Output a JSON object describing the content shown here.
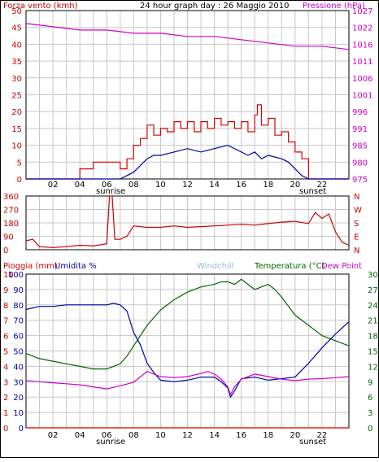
{
  "colors": {
    "wind": "#cc0000",
    "gust": "#dd0000",
    "wind_avg": "#0000aa",
    "pressure": "#cc00cc",
    "direction": "#cc0000",
    "temperature": "#006600",
    "humidity": "#0000aa",
    "dew_point": "#cc00cc",
    "windchill": "#99bbdd",
    "rain": "#cc0000",
    "grid": "#c8c8c8",
    "frame": "#000000"
  },
  "chart_data": [
    {
      "type": "line",
      "title": "24 hour graph day : 26 Maggio 2010",
      "ylabel_left": "Forza vento (kmh)",
      "ylabel_right": "Pressione (hPa)",
      "x_ticks": [
        "02",
        "04",
        "06",
        "08",
        "10",
        "12",
        "14",
        "16",
        "18",
        "20",
        "22"
      ],
      "x_markers": {
        "sunrise": "sunrise",
        "sunset": "sunset"
      },
      "ylim_left": [
        0,
        50
      ],
      "yticks_left": [
        "0",
        "5",
        "10",
        "15",
        "20",
        "25",
        "30",
        "35",
        "40",
        "45",
        "50"
      ],
      "ylim_right": [
        975,
        1027
      ],
      "yticks_right": [
        "975",
        "980",
        "985",
        "991",
        "996",
        "1001",
        "1006",
        "1011",
        "1016",
        "1022",
        "1027"
      ],
      "series": [
        {
          "key": "gust",
          "x": [
            0,
            2,
            4,
            5,
            6,
            7,
            7.5,
            8,
            8.5,
            9,
            9.5,
            10,
            10.5,
            11,
            11.5,
            12,
            12.5,
            13,
            13.5,
            14,
            14.5,
            15,
            15.5,
            16,
            16.5,
            17,
            17.2,
            17.5,
            18,
            18.5,
            19,
            19.5,
            20,
            20.5,
            21,
            22,
            24
          ],
          "y": [
            0,
            0,
            3,
            5,
            5,
            3,
            6,
            10,
            12,
            16,
            13,
            15,
            14,
            17,
            15,
            17,
            14,
            17,
            15,
            18,
            16,
            17,
            15,
            17,
            14,
            19,
            22,
            16,
            18,
            13,
            14,
            11,
            8,
            6,
            0,
            0,
            0
          ]
        },
        {
          "key": "wind_avg",
          "x": [
            0,
            6,
            7,
            8,
            8.5,
            9,
            9.5,
            10,
            11,
            12,
            13,
            14,
            15,
            16,
            16.5,
            17,
            17.5,
            18,
            19,
            19.5,
            20,
            20.5,
            21,
            24
          ],
          "y": [
            0,
            0,
            0,
            2,
            4,
            6,
            7,
            7,
            8,
            9,
            8,
            9,
            10,
            8,
            7,
            8,
            6,
            7,
            6,
            5,
            3,
            1,
            0,
            0
          ]
        },
        {
          "key": "pressure",
          "x": [
            0,
            2,
            4,
            6,
            8,
            10,
            12,
            14,
            16,
            18,
            20,
            22,
            24
          ],
          "y": [
            1023,
            1022,
            1021,
            1021,
            1020,
            1020,
            1019,
            1019,
            1018,
            1017,
            1016,
            1016,
            1015
          ]
        }
      ]
    },
    {
      "type": "line",
      "ylim": [
        0,
        360
      ],
      "yticks": [
        "0",
        "90",
        "180",
        "270",
        "360"
      ],
      "compass": [
        "N",
        "W",
        "S",
        "E",
        "N"
      ],
      "series": [
        {
          "key": "direction",
          "x": [
            0,
            0.5,
            1,
            2,
            3,
            4,
            5,
            6,
            6.2,
            6.4,
            6.6,
            7,
            7.5,
            8,
            9,
            10,
            11,
            12,
            13,
            14,
            15,
            16,
            17,
            18,
            19,
            20,
            21,
            21.5,
            22,
            22.5,
            23,
            23.5,
            24
          ],
          "y": [
            60,
            70,
            20,
            15,
            20,
            30,
            25,
            40,
            360,
            360,
            70,
            70,
            90,
            160,
            150,
            150,
            160,
            150,
            155,
            160,
            165,
            170,
            165,
            175,
            185,
            190,
            175,
            250,
            210,
            240,
            120,
            50,
            30
          ]
        }
      ]
    },
    {
      "type": "line",
      "ylabel_left_1": "Pioggia (mm)",
      "ylabel_left_2": "Umidita %",
      "label_windchill": "Windchill",
      "ylabel_right_1": "Temperatura (°C)",
      "ylabel_right_2": "Dew Point",
      "x_ticks": [
        "02",
        "04",
        "06",
        "08",
        "10",
        "12",
        "14",
        "16",
        "18",
        "20",
        "22"
      ],
      "x_markers": {
        "sunrise": "sunrise",
        "sunset": "sunset"
      },
      "ylim_rain": [
        0,
        10
      ],
      "yticks_rain": [
        "0",
        "1",
        "2",
        "3",
        "4",
        "5",
        "6",
        "7",
        "8",
        "9",
        "10"
      ],
      "ylim_humidity": [
        0,
        100
      ],
      "yticks_humidity": [
        "0",
        "10",
        "20",
        "30",
        "40",
        "50",
        "60",
        "70",
        "80",
        "90",
        "100"
      ],
      "ylim_temp": [
        0,
        30
      ],
      "yticks_temp": [
        "0",
        "3",
        "6",
        "9",
        "12",
        "15",
        "18",
        "21",
        "24",
        "27",
        "30"
      ],
      "series": [
        {
          "key": "temperature",
          "x": [
            0,
            1,
            2,
            3,
            4,
            5,
            6,
            7,
            7.5,
            8,
            9,
            10,
            11,
            12,
            13,
            14,
            14.5,
            15,
            15.5,
            16,
            17,
            18,
            18.5,
            19,
            20,
            21,
            22,
            23,
            24
          ],
          "y": [
            14.5,
            13.5,
            13,
            12.5,
            12,
            11.5,
            11.5,
            12.5,
            14,
            16,
            20,
            23,
            25,
            26.5,
            27.5,
            28,
            28.5,
            28.5,
            28,
            29,
            27,
            28,
            27,
            25.5,
            22,
            20,
            18,
            17,
            16
          ]
        },
        {
          "key": "humidity",
          "x": [
            0,
            1,
            2,
            3,
            4,
            5,
            6,
            6.5,
            7,
            7.5,
            8,
            8.5,
            9,
            9.5,
            10,
            11,
            12,
            13,
            14,
            14.5,
            15,
            15.2,
            15.5,
            16,
            17,
            18,
            19,
            20,
            21,
            22,
            23,
            24
          ],
          "y": [
            77,
            79,
            79,
            80,
            80,
            80,
            80,
            81,
            80,
            76,
            62,
            54,
            42,
            36,
            31,
            30,
            31,
            33,
            33,
            30,
            26,
            20,
            24,
            32,
            33,
            31,
            32,
            33,
            42,
            52,
            61,
            69
          ]
        },
        {
          "key": "dew_point",
          "x": [
            0,
            1,
            2,
            3,
            4,
            5,
            6,
            7,
            8,
            9,
            10,
            11,
            12,
            13,
            13.5,
            14,
            14.5,
            15,
            15.2,
            15.5,
            16,
            17,
            18,
            19,
            20,
            21,
            22,
            23,
            24
          ],
          "y": [
            9.2,
            9,
            8.8,
            8.6,
            8.4,
            8,
            7.6,
            8.2,
            8.9,
            11,
            10,
            9.8,
            10,
            10.6,
            11,
            10.5,
            9.5,
            8,
            6.5,
            8,
            9.5,
            10.5,
            10,
            9.5,
            9.2,
            9.5,
            9.6,
            9.8,
            10
          ]
        },
        {
          "key": "rain",
          "x": [
            0,
            24
          ],
          "y": [
            0,
            0
          ]
        }
      ]
    }
  ]
}
